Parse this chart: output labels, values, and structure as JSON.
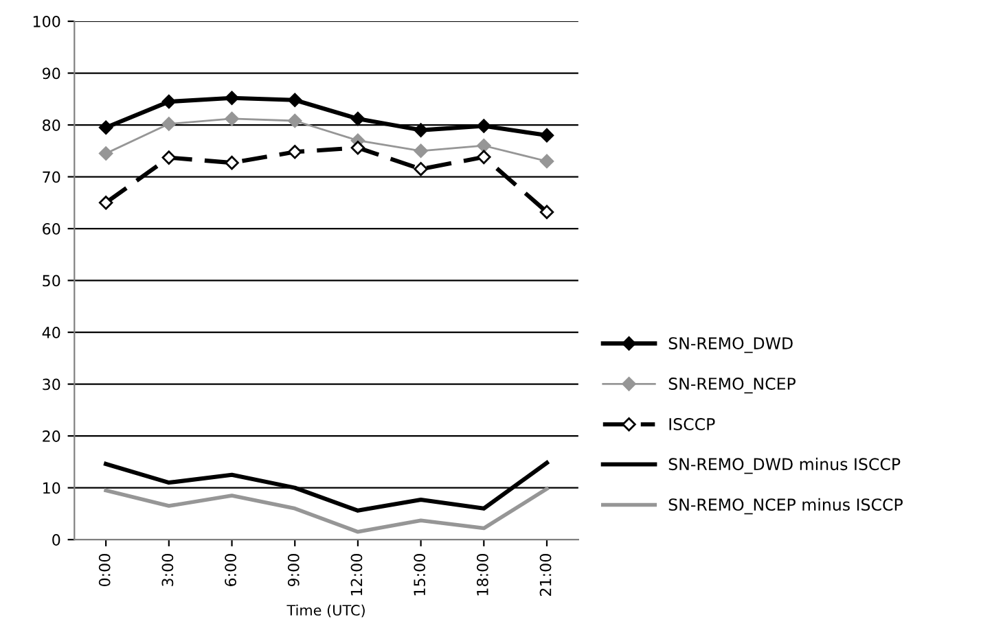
{
  "chart_data": {
    "type": "line",
    "xlabel": "Time (UTC)",
    "categories": [
      "0:00",
      "3:00",
      "6:00",
      "9:00",
      "12:00",
      "15:00",
      "18:00",
      "21:00"
    ],
    "series": [
      {
        "name": "SN-REMO_DWD",
        "color": "#000000",
        "marker": "diamond",
        "line_style": "solid",
        "values": [
          79.5,
          84.5,
          85.2,
          84.8,
          81.2,
          79.0,
          79.8,
          78.0
        ]
      },
      {
        "name": "SN-REMO_NCEP",
        "color": "#969696",
        "marker": "diamond",
        "line_style": "solid",
        "values": [
          74.5,
          80.2,
          81.2,
          80.8,
          77.0,
          75.0,
          76.0,
          73.0
        ]
      },
      {
        "name": "ISCCP",
        "color": "#000000",
        "marker": "diamond",
        "line_style": "dashed",
        "values": [
          65.0,
          73.7,
          72.7,
          74.8,
          75.6,
          71.5,
          73.8,
          63.2
        ]
      },
      {
        "name": "SN-REMO_DWD minus ISCCP",
        "color": "#000000",
        "marker": "none",
        "line_style": "solid",
        "values": [
          14.6,
          11.0,
          12.5,
          10.0,
          5.6,
          7.7,
          6.0,
          14.8
        ]
      },
      {
        "name": "SN-REMO_NCEP minus ISCCP",
        "color": "#969696",
        "marker": "none",
        "line_style": "solid",
        "values": [
          9.5,
          6.5,
          8.5,
          6.0,
          1.5,
          3.7,
          2.2,
          9.8
        ]
      }
    ],
    "ylim": [
      0,
      100
    ],
    "yticks": [
      0,
      10,
      20,
      30,
      40,
      50,
      60,
      70,
      80,
      90,
      100
    ],
    "grid": "y",
    "legend": "right"
  }
}
